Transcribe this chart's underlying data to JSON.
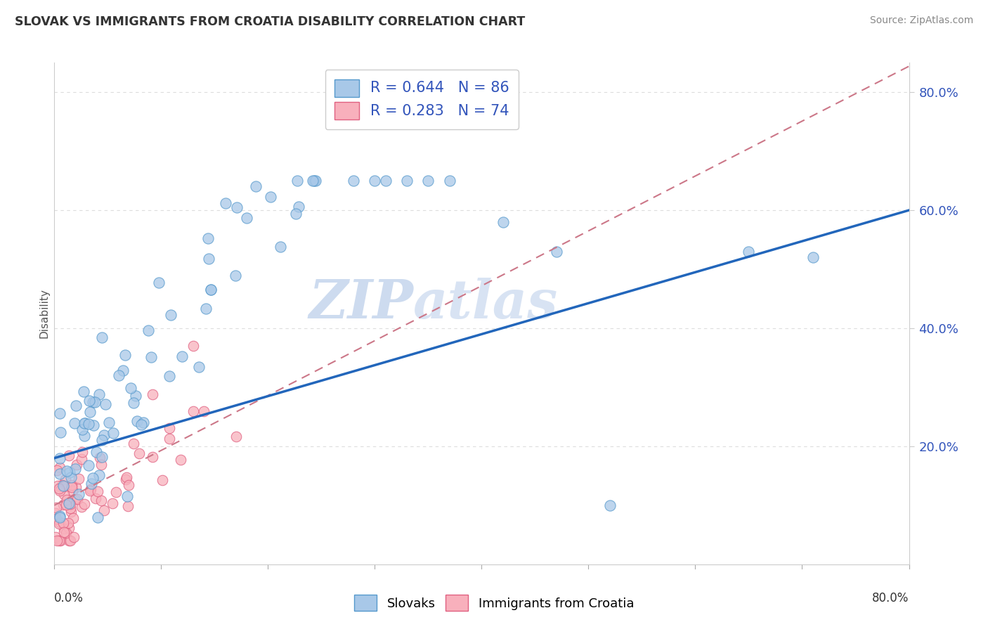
{
  "title": "SLOVAK VS IMMIGRANTS FROM CROATIA DISABILITY CORRELATION CHART",
  "source": "Source: ZipAtlas.com",
  "ylabel": "Disability",
  "ylabel_ticks": [
    "20.0%",
    "40.0%",
    "60.0%",
    "80.0%"
  ],
  "ylabel_tick_vals": [
    0.2,
    0.4,
    0.6,
    0.8
  ],
  "xmin": 0.0,
  "xmax": 0.8,
  "ymin": 0.0,
  "ymax": 0.85,
  "legend1_R": "0.644",
  "legend1_N": "86",
  "legend2_R": "0.283",
  "legend2_N": "74",
  "series1_color": "#a8c8e8",
  "series1_edge": "#5599cc",
  "series2_color": "#f8b0bc",
  "series2_edge": "#e06080",
  "line1_color": "#2266bb",
  "diag_color": "#cc7788",
  "watermark_color": "#c8d8ee",
  "grid_color": "#dddddd",
  "tick_color": "#3355bb",
  "title_color": "#333333",
  "source_color": "#888888"
}
